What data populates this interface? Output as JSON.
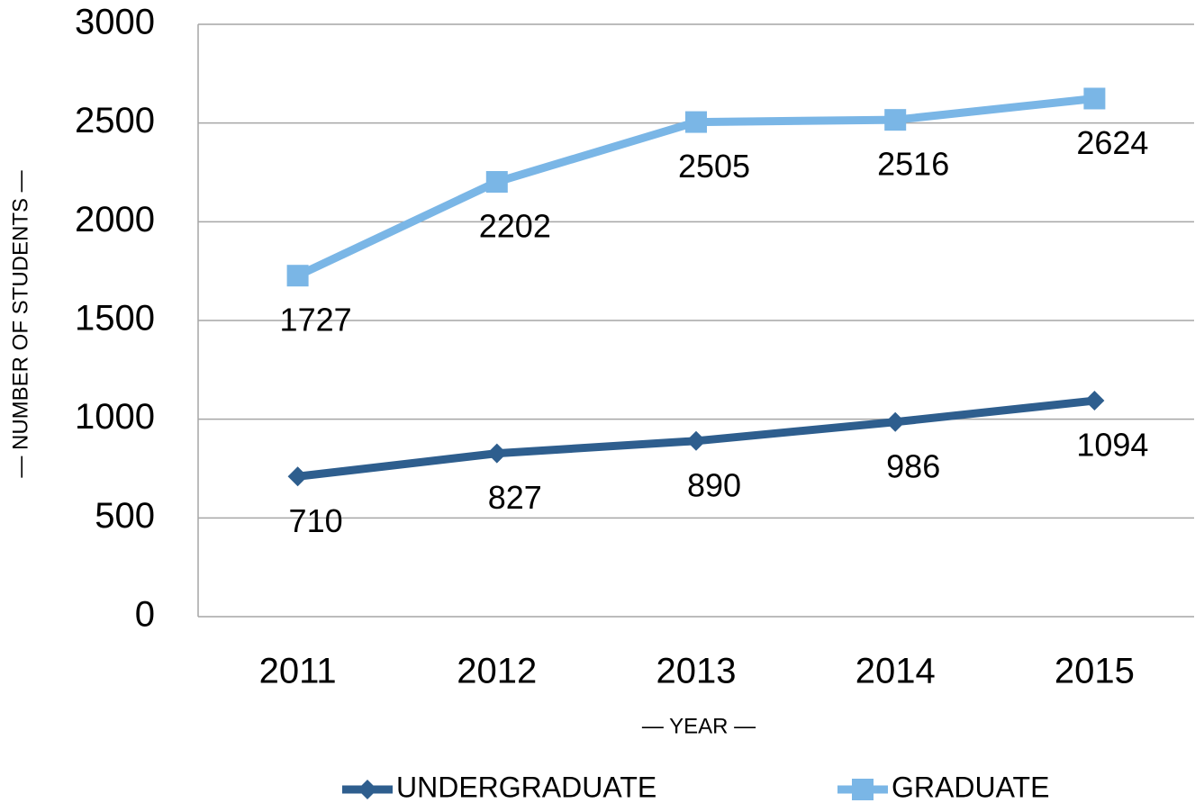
{
  "chart_data": {
    "type": "line",
    "x_label": "— YEAR —",
    "y_label": "— NUMBER OF STUDENTS —",
    "categories": [
      "2011",
      "2012",
      "2013",
      "2014",
      "2015"
    ],
    "series": [
      {
        "name": "UNDERGRADUATE",
        "color": "#2e5e8e",
        "marker": "diamond",
        "values": [
          710,
          827,
          890,
          986,
          1094
        ]
      },
      {
        "name": "GRADUATE",
        "color": "#7ab6e6",
        "marker": "square",
        "values": [
          1727,
          2202,
          2505,
          2516,
          2624
        ]
      }
    ],
    "ylim": [
      0,
      3000
    ],
    "yticks": [
      0,
      500,
      1000,
      1500,
      2000,
      2500,
      3000
    ],
    "grid": true,
    "legend": "bottom"
  }
}
